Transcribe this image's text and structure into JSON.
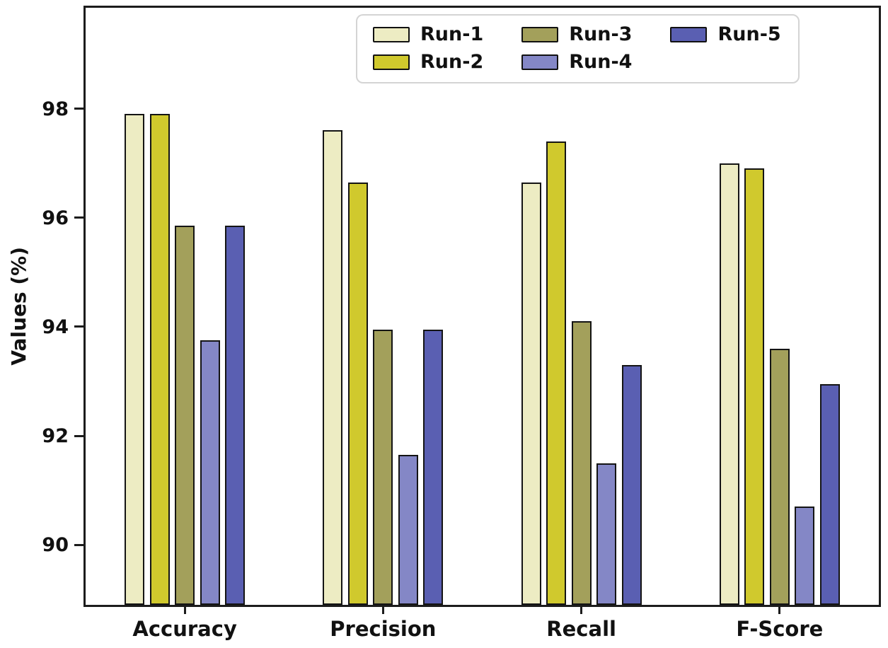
{
  "figure": {
    "background": "#ffffff",
    "axis_color": "#1c1c1c",
    "text_color": "#111111"
  },
  "chart_data": {
    "type": "bar",
    "title": "",
    "xlabel": "",
    "ylabel": "Values (%)",
    "categories": [
      "Accuracy",
      "Precision",
      "Recall",
      "F-Score"
    ],
    "series": [
      {
        "name": "Run-1",
        "color": "#edecc3",
        "values": [
          97.9,
          97.6,
          96.65,
          97.0
        ]
      },
      {
        "name": "Run-2",
        "color": "#d0c92d",
        "values": [
          97.9,
          96.65,
          97.4,
          96.9
        ]
      },
      {
        "name": "Run-3",
        "color": "#a3a05b",
        "values": [
          95.85,
          93.95,
          94.1,
          93.6
        ]
      },
      {
        "name": "Run-4",
        "color": "#8487c6",
        "values": [
          93.75,
          91.65,
          91.5,
          90.7
        ]
      },
      {
        "name": "Run-5",
        "color": "#5a5fb2",
        "values": [
          95.85,
          93.95,
          93.3,
          92.95
        ]
      }
    ],
    "ylim": [
      88.9,
      99.85
    ],
    "yticks": [
      90,
      92,
      94,
      96,
      98
    ],
    "grid": false,
    "bar_edge_color": "#141414",
    "legend": {
      "position": "top-center",
      "columns": 3,
      "rows": 2,
      "labels": [
        "Run-1",
        "Run-2",
        "Run-3",
        "Run-4",
        "Run-5"
      ]
    }
  }
}
